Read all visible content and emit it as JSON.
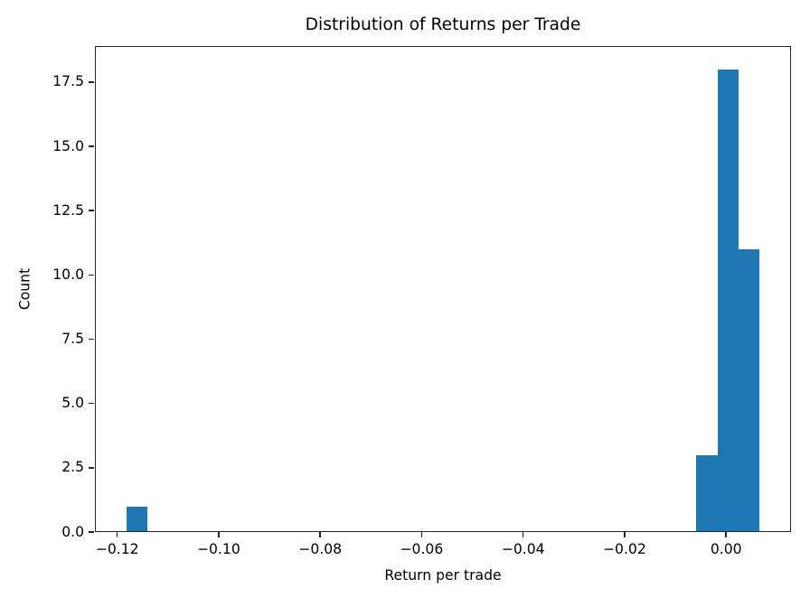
{
  "chart_data": {
    "type": "bar",
    "kind": "histogram",
    "title": "Distribution of Returns per Trade",
    "xlabel": "Return per trade",
    "ylabel": "Count",
    "xlim": [
      -0.1244,
      0.0128
    ],
    "ylim": [
      0,
      18.9
    ],
    "xticks": [
      -0.12,
      -0.1,
      -0.08,
      -0.06,
      -0.04,
      -0.02,
      0.0
    ],
    "xtick_labels": [
      "−0.12",
      "−0.10",
      "−0.08",
      "−0.06",
      "−0.04",
      "−0.02",
      "0.00"
    ],
    "yticks": [
      0.0,
      2.5,
      5.0,
      7.5,
      10.0,
      12.5,
      15.0,
      17.5
    ],
    "ytick_labels": [
      "0.0",
      "2.5",
      "5.0",
      "7.5",
      "10.0",
      "12.5",
      "15.0",
      "17.5"
    ],
    "bars": [
      {
        "x0": -0.1182,
        "x1": -0.114,
        "count": 1
      },
      {
        "x0": -0.0059,
        "x1": -0.0017,
        "count": 3
      },
      {
        "x0": -0.0017,
        "x1": 0.0024,
        "count": 18
      },
      {
        "x0": 0.0024,
        "x1": 0.0066,
        "count": 11
      }
    ],
    "bar_color": "#1f77b4",
    "axis_color": "#262626",
    "text_color": "#000000",
    "grid": false,
    "legend": false
  }
}
